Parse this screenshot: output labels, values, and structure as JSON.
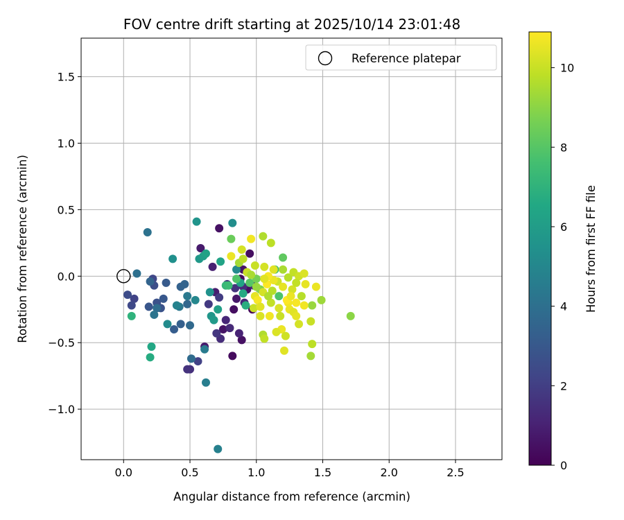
{
  "chart_data": {
    "type": "scatter",
    "title": "FOV centre drift starting at 2025/10/14 23:01:48",
    "xlabel": "Angular distance from reference (arcmin)",
    "ylabel": "Rotation from reference (arcmin)",
    "xlim": [
      -0.32,
      2.85
    ],
    "ylim": [
      -1.38,
      1.79
    ],
    "xticks": [
      0.0,
      0.5,
      1.0,
      1.5,
      2.0,
      2.5
    ],
    "xtick_labels": [
      "0.0",
      "0.5",
      "1.0",
      "1.5",
      "2.0",
      "2.5"
    ],
    "yticks": [
      -1.0,
      -0.5,
      0.0,
      0.5,
      1.0,
      1.5
    ],
    "ytick_labels": [
      "−1.0",
      "−0.5",
      "0.0",
      "0.5",
      "1.0",
      "1.5"
    ],
    "grid": true,
    "legend": {
      "position": "top-right",
      "entries": [
        "Reference platepar"
      ]
    },
    "reference_point": {
      "x": 0.0,
      "y": 0.0,
      "marker": "open-circle"
    },
    "colorbar": {
      "label": "Hours from first FF file",
      "min": 0,
      "max": 10.9,
      "ticks": [
        0,
        2,
        4,
        6,
        8,
        10
      ],
      "tick_labels": [
        "0",
        "2",
        "4",
        "6",
        "8",
        "10"
      ],
      "colormap": "viridis"
    },
    "points": [
      [
        0.72,
        0.36,
        0.5
      ],
      [
        0.58,
        0.21,
        0.8
      ],
      [
        0.95,
        0.17,
        0.4
      ],
      [
        0.9,
        0.05,
        0.6
      ],
      [
        0.88,
        -0.02,
        0.3
      ],
      [
        0.85,
        -0.17,
        0.7
      ],
      [
        0.93,
        -0.1,
        0.5
      ],
      [
        0.97,
        -0.25,
        0.2
      ],
      [
        0.83,
        -0.25,
        0.4
      ],
      [
        0.75,
        -0.4,
        0.6
      ],
      [
        0.82,
        -0.6,
        0.3
      ],
      [
        0.89,
        -0.48,
        0.5
      ],
      [
        0.61,
        -0.53,
        0.8
      ],
      [
        0.69,
        -0.12,
        0.9
      ],
      [
        0.67,
        0.07,
        1.0
      ],
      [
        0.77,
        -0.33,
        1.2
      ],
      [
        0.8,
        -0.39,
        1.3
      ],
      [
        0.87,
        -0.43,
        1.1
      ],
      [
        0.73,
        -0.47,
        1.4
      ],
      [
        0.5,
        -0.7,
        1.5
      ],
      [
        0.48,
        -0.7,
        1.6
      ],
      [
        0.56,
        -0.64,
        2.1
      ],
      [
        0.64,
        -0.21,
        1.8
      ],
      [
        0.72,
        -0.16,
        1.9
      ],
      [
        0.7,
        -0.43,
        1.7
      ],
      [
        0.78,
        -0.06,
        1.5
      ],
      [
        0.9,
        -0.08,
        1.4
      ],
      [
        0.98,
        -0.07,
        1.3
      ],
      [
        0.91,
        -0.2,
        1.2
      ],
      [
        0.84,
        -0.09,
        1.6
      ],
      [
        0.08,
        -0.17,
        2.2
      ],
      [
        0.03,
        -0.14,
        2.5
      ],
      [
        0.06,
        -0.22,
        2.4
      ],
      [
        0.22,
        -0.02,
        2.3
      ],
      [
        0.23,
        -0.07,
        2.6
      ],
      [
        0.25,
        -0.2,
        2.7
      ],
      [
        0.28,
        -0.24,
        2.8
      ],
      [
        0.19,
        -0.23,
        2.9
      ],
      [
        0.3,
        -0.17,
        3.0
      ],
      [
        0.32,
        -0.05,
        3.1
      ],
      [
        0.38,
        -0.4,
        3.2
      ],
      [
        0.43,
        -0.36,
        3.3
      ],
      [
        0.43,
        -0.08,
        3.4
      ],
      [
        0.46,
        -0.06,
        3.5
      ],
      [
        0.48,
        -0.21,
        3.6
      ],
      [
        0.5,
        -0.37,
        3.7
      ],
      [
        0.51,
        -0.62,
        3.8
      ],
      [
        0.25,
        -0.24,
        3.9
      ],
      [
        0.1,
        0.02,
        4.0
      ],
      [
        0.18,
        0.33,
        4.1
      ],
      [
        0.23,
        -0.29,
        4.2
      ],
      [
        0.42,
        -0.23,
        4.3
      ],
      [
        0.48,
        -0.15,
        4.4
      ],
      [
        0.61,
        -0.55,
        4.5
      ],
      [
        0.62,
        -0.8,
        4.6
      ],
      [
        0.71,
        -1.3,
        4.7
      ],
      [
        0.2,
        -0.04,
        3.5
      ],
      [
        0.4,
        -0.22,
        4.8
      ],
      [
        0.54,
        -0.18,
        5.0
      ],
      [
        0.33,
        -0.36,
        5.2
      ],
      [
        0.37,
        0.13,
        5.4
      ],
      [
        0.55,
        0.41,
        5.6
      ],
      [
        0.57,
        0.13,
        5.8
      ],
      [
        0.6,
        0.15,
        6.0
      ],
      [
        0.62,
        0.17,
        6.2
      ],
      [
        0.65,
        -0.12,
        5.5
      ],
      [
        0.66,
        -0.3,
        5.7
      ],
      [
        0.68,
        -0.33,
        5.9
      ],
      [
        0.71,
        -0.25,
        6.1
      ],
      [
        0.73,
        0.11,
        6.3
      ],
      [
        0.82,
        0.4,
        5.3
      ],
      [
        0.85,
        0.05,
        5.1
      ],
      [
        0.88,
        -0.05,
        6.4
      ],
      [
        0.9,
        -0.13,
        6.6
      ],
      [
        0.92,
        -0.22,
        6.8
      ],
      [
        0.21,
        -0.53,
        6.5
      ],
      [
        0.2,
        -0.61,
        6.7
      ],
      [
        0.06,
        -0.3,
        7.0
      ],
      [
        0.77,
        -0.07,
        7.2
      ],
      [
        0.79,
        -0.07,
        7.4
      ],
      [
        1.14,
        0.05,
        7.6
      ],
      [
        1.17,
        -0.15,
        7.8
      ],
      [
        1.2,
        0.14,
        8.2
      ],
      [
        0.81,
        0.28,
        8.4
      ],
      [
        0.85,
        -0.02,
        7.9
      ],
      [
        0.95,
        -0.05,
        8.0
      ],
      [
        1.0,
        -0.02,
        8.6
      ],
      [
        1.03,
        -0.1,
        8.8
      ],
      [
        1.71,
        -0.3,
        9.0
      ],
      [
        1.41,
        -0.6,
        9.4
      ],
      [
        1.05,
        0.3,
        9.6
      ],
      [
        1.11,
        0.25,
        9.8
      ],
      [
        0.99,
        0.08,
        10.0
      ],
      [
        1.06,
        0.07,
        10.2
      ],
      [
        1.13,
        0.05,
        10.4
      ],
      [
        1.2,
        0.05,
        9.5
      ],
      [
        1.24,
        -0.01,
        9.7
      ],
      [
        1.28,
        0.03,
        9.9
      ],
      [
        1.32,
        0.0,
        10.1
      ],
      [
        1.36,
        0.02,
        10.3
      ],
      [
        1.37,
        -0.06,
        10.5
      ],
      [
        1.45,
        -0.08,
        10.6
      ],
      [
        1.49,
        -0.18,
        9.3
      ],
      [
        1.42,
        -0.22,
        9.2
      ],
      [
        1.36,
        -0.22,
        10.7
      ],
      [
        1.3,
        -0.2,
        10.8
      ],
      [
        1.25,
        -0.25,
        10.6
      ],
      [
        1.28,
        -0.27,
        10.4
      ],
      [
        1.32,
        -0.36,
        10.2
      ],
      [
        1.41,
        -0.34,
        10.0
      ],
      [
        1.42,
        -0.51,
        9.8
      ],
      [
        1.21,
        -0.56,
        10.4
      ],
      [
        1.19,
        -0.4,
        10.6
      ],
      [
        1.22,
        -0.45,
        10.1
      ],
      [
        1.05,
        -0.44,
        9.6
      ],
      [
        1.06,
        -0.47,
        9.9
      ],
      [
        1.1,
        -0.3,
        10.7
      ],
      [
        1.03,
        -0.3,
        10.3
      ],
      [
        0.98,
        -0.24,
        10.0
      ],
      [
        0.99,
        -0.15,
        10.5
      ],
      [
        1.01,
        -0.18,
        10.8
      ],
      [
        1.05,
        -0.12,
        10.2
      ],
      [
        1.08,
        -0.06,
        10.9
      ],
      [
        1.12,
        -0.11,
        9.7
      ],
      [
        1.16,
        -0.04,
        10.1
      ],
      [
        1.2,
        -0.08,
        10.5
      ],
      [
        1.24,
        -0.2,
        10.7
      ],
      [
        1.17,
        -0.24,
        10.3
      ],
      [
        1.11,
        -0.2,
        9.9
      ],
      [
        1.13,
        -0.03,
        10.6
      ],
      [
        1.09,
        0.0,
        10.8
      ],
      [
        1.06,
        -0.02,
        10.4
      ],
      [
        0.96,
        0.28,
        10.7
      ],
      [
        0.89,
        0.2,
        10.2
      ],
      [
        0.87,
        0.1,
        9.4
      ],
      [
        0.9,
        0.13,
        9.8
      ],
      [
        0.93,
        0.03,
        10.0
      ],
      [
        0.81,
        0.15,
        10.6
      ],
      [
        1.15,
        -0.42,
        10.3
      ],
      [
        1.3,
        -0.3,
        10.5
      ],
      [
        1.34,
        -0.15,
        9.7
      ],
      [
        1.27,
        -0.1,
        10.2
      ],
      [
        1.23,
        -0.18,
        10.9
      ],
      [
        1.18,
        -0.3,
        10.0
      ],
      [
        1.09,
        -0.15,
        9.6
      ],
      [
        1.03,
        -0.23,
        10.4
      ],
      [
        1.0,
        -0.08,
        9.2
      ],
      [
        0.96,
        0.01,
        9.5
      ],
      [
        1.3,
        -0.05,
        9.9
      ],
      [
        1.26,
        -0.15,
        10.6
      ]
    ]
  }
}
